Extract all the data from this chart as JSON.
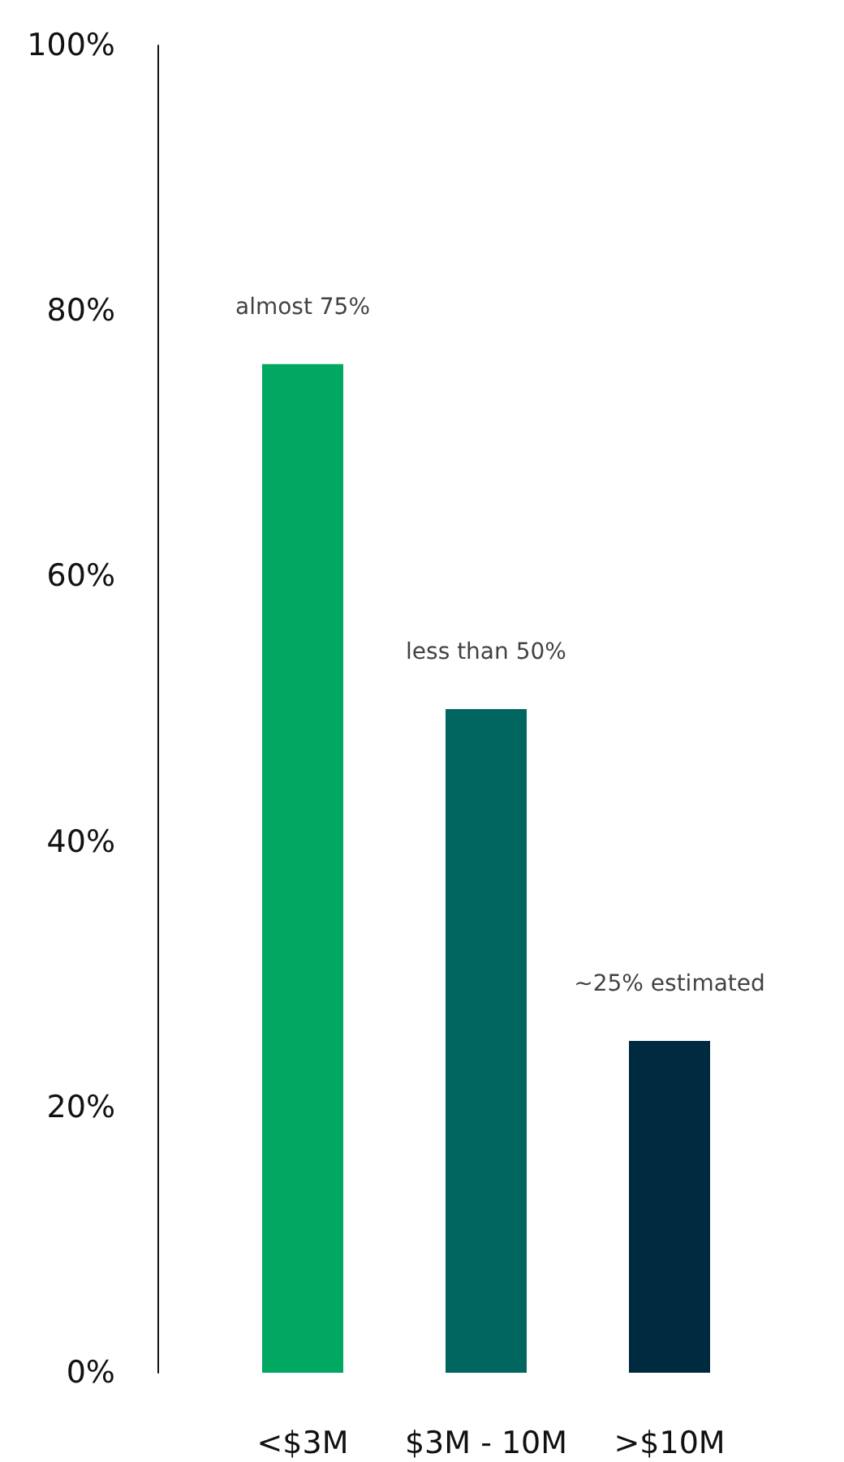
{
  "chart_data": {
    "type": "bar",
    "categories": [
      "<$3M",
      "$3M - 10M",
      ">$10M"
    ],
    "values": [
      76,
      50,
      25
    ],
    "colors": [
      "#00a862",
      "#00665f",
      "#002a3f"
    ],
    "ylim": [
      0,
      100
    ],
    "yticks": [
      {
        "value": 0,
        "label": "0%"
      },
      {
        "value": 20,
        "label": "20%"
      },
      {
        "value": 40,
        "label": "40%"
      },
      {
        "value": 60,
        "label": "60%"
      },
      {
        "value": 80,
        "label": "80%"
      },
      {
        "value": 100,
        "label": "100%"
      }
    ],
    "grid": false,
    "annotations": [
      {
        "text": "almost 75%",
        "x": "<$3M",
        "y": 76
      },
      {
        "text": "less than 50%",
        "x": "$3M - 10M",
        "y": 50
      },
      {
        "text": "~25% estimated",
        "x": ">$10M",
        "y": 25
      }
    ]
  }
}
